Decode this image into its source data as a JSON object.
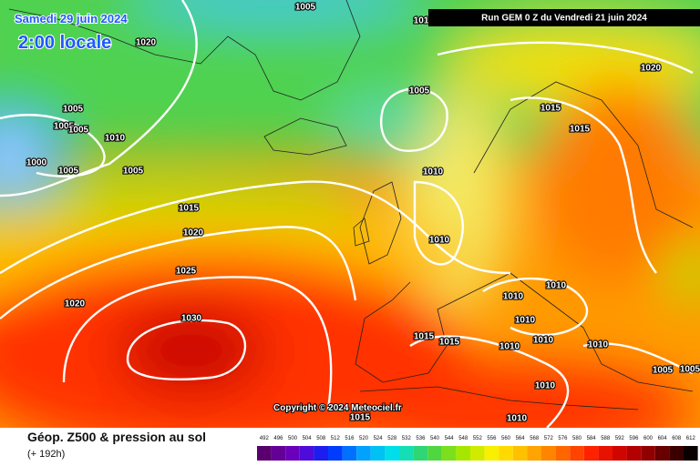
{
  "header": {
    "date": "Samedi 29 juin 2024",
    "time": "2:00 locale",
    "run": "Run GEM 0 Z du Vendredi 21 juin 2024"
  },
  "map": {
    "isobar_labels": [
      1005,
      101,
      1020,
      1005,
      1005,
      1005,
      1010,
      1000,
      1005,
      1005,
      1005,
      1010,
      1015,
      1015,
      1020,
      1015,
      1020,
      1010,
      1025,
      1020,
      1030,
      1010,
      1010,
      1010,
      1015,
      1015,
      1010,
      1010,
      1010,
      1005,
      1005,
      1010,
      1015,
      1010
    ],
    "copyright": "Copyright © 2024 Meteociel.fr"
  },
  "legend": {
    "title": "Géop. Z500 & pression au sol",
    "lead": "(+ 192h)",
    "scale": [
      492,
      496,
      500,
      504,
      508,
      512,
      516,
      520,
      524,
      528,
      532,
      536,
      540,
      544,
      548,
      552,
      556,
      560,
      564,
      568,
      572,
      576,
      580,
      584,
      588,
      592,
      596,
      600,
      604,
      608,
      612
    ]
  }
}
